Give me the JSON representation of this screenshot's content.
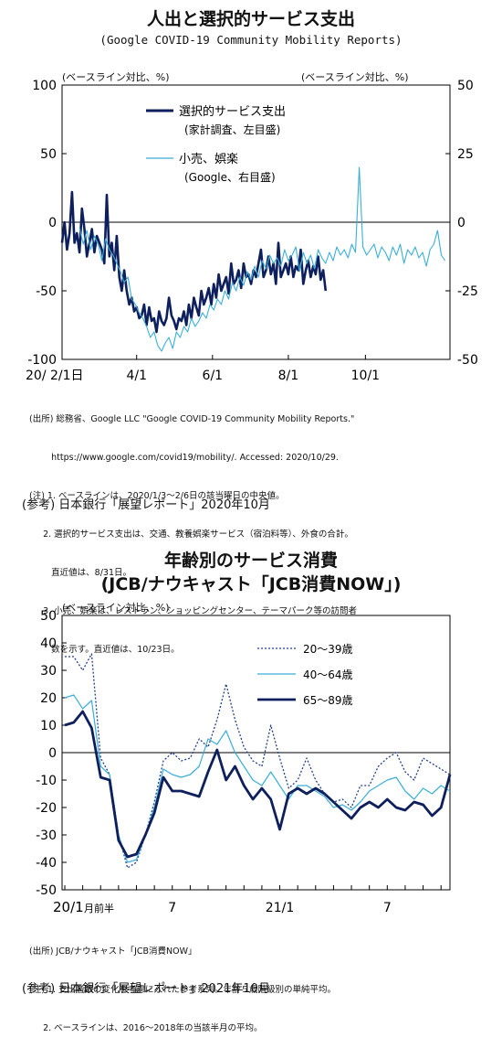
{
  "chart_data": [
    {
      "type": "line",
      "title": "人出と選択的サービス支出",
      "subtitle": "(Google COVID-19 Community Mobility Reports)",
      "y_left_unit": "(ベースライン対比、%)",
      "y_right_unit": "(ベースライン対比、%)",
      "ylim_left": [
        -100,
        100
      ],
      "ylim_right": [
        -50,
        50
      ],
      "yticks_left": [
        "100",
        "50",
        "0",
        "-50",
        "-100"
      ],
      "yticks_right": [
        "50",
        "25",
        "0",
        "-25",
        "-50"
      ],
      "xticks": [
        "20/ 2/1日",
        "4/1",
        "6/1",
        "8/1",
        "10/1"
      ],
      "grid": false,
      "legend_position": "top-left",
      "series": [
        {
          "name": "選択的サービス支出",
          "sub": "(家計調査、左目盛)",
          "axis": "left",
          "color": "#0d1f5c",
          "x_day": [
            0,
            2,
            4,
            6,
            8,
            10,
            12,
            14,
            16,
            18,
            20,
            22,
            24,
            26,
            28,
            30,
            32,
            34,
            36,
            38,
            40,
            42,
            44,
            46,
            48,
            50,
            52,
            54,
            56,
            58,
            60,
            62,
            64,
            66,
            68,
            70,
            72,
            74,
            76,
            78,
            80,
            82,
            84,
            86,
            88,
            90,
            92,
            94,
            96,
            98,
            100,
            102,
            104,
            106,
            108,
            110,
            112,
            114,
            116,
            118,
            120,
            122,
            124,
            126,
            128,
            130,
            132,
            134,
            136,
            138,
            140,
            142,
            144,
            146,
            148,
            150,
            152,
            154,
            156,
            158,
            160,
            162,
            164,
            166,
            168,
            170,
            172,
            174,
            176,
            178,
            180,
            182,
            184,
            186,
            188,
            190,
            192,
            194,
            196,
            198,
            200,
            202,
            204,
            206,
            208,
            210,
            212
          ],
          "y": [
            -15,
            0,
            -20,
            -8,
            22,
            -15,
            -8,
            -22,
            10,
            -5,
            -25,
            -15,
            -5,
            -22,
            -10,
            -15,
            -20,
            -30,
            20,
            -25,
            -15,
            -35,
            -10,
            -40,
            -50,
            -35,
            -50,
            -60,
            -55,
            -65,
            -62,
            -70,
            -68,
            -60,
            -75,
            -62,
            -72,
            -70,
            -80,
            -65,
            -72,
            -75,
            -70,
            -55,
            -68,
            -72,
            -78,
            -70,
            -72,
            -65,
            -75,
            -60,
            -70,
            -55,
            -62,
            -68,
            -50,
            -60,
            -55,
            -48,
            -60,
            -45,
            -55,
            -38,
            -50,
            -45,
            -40,
            -52,
            -30,
            -45,
            -42,
            -35,
            -48,
            -30,
            -40,
            -38,
            -45,
            -35,
            -40,
            -30,
            -20,
            -40,
            -35,
            -25,
            -38,
            -30,
            -45,
            -15,
            -40,
            -35,
            -30,
            -38,
            -25,
            -40,
            -32,
            -35,
            -20,
            -45,
            -35,
            -28,
            -40,
            -32,
            -38,
            -25,
            -42,
            -35,
            -50
          ]
        },
        {
          "name": "小売、娯楽",
          "sub": "(Google、右目盛)",
          "axis": "right",
          "color": "#3aaed8",
          "x_day": [
            14,
            17,
            20,
            23,
            26,
            29,
            32,
            35,
            38,
            41,
            44,
            47,
            50,
            53,
            56,
            59,
            62,
            65,
            68,
            71,
            74,
            77,
            80,
            83,
            86,
            89,
            92,
            95,
            98,
            101,
            104,
            107,
            110,
            113,
            116,
            119,
            122,
            125,
            128,
            131,
            134,
            137,
            140,
            143,
            146,
            149,
            152,
            155,
            158,
            161,
            164,
            167,
            170,
            173,
            176,
            179,
            182,
            185,
            188,
            191,
            194,
            197,
            200,
            203,
            206,
            209,
            212,
            215,
            218,
            221,
            224,
            227,
            230,
            233,
            236,
            239,
            242,
            245,
            248,
            251,
            254,
            257,
            260,
            263,
            266,
            269,
            272,
            275,
            278,
            281,
            284,
            287,
            290,
            293,
            296,
            299,
            302,
            305,
            308
          ],
          "y": [
            -2,
            -8,
            -3,
            -10,
            -5,
            -8,
            -14,
            -6,
            -10,
            -12,
            -15,
            -18,
            -22,
            -20,
            -28,
            -30,
            -33,
            -35,
            -38,
            -42,
            -40,
            -45,
            -47,
            -44,
            -42,
            -46,
            -40,
            -42,
            -38,
            -40,
            -35,
            -38,
            -36,
            -33,
            -35,
            -30,
            -32,
            -28,
            -30,
            -25,
            -28,
            -22,
            -25,
            -20,
            -23,
            -18,
            -21,
            -16,
            -20,
            -14,
            -17,
            -12,
            -15,
            -13,
            -16,
            -10,
            -14,
            -12,
            -9,
            -18,
            -11,
            -15,
            -12,
            -17,
            -10,
            -13,
            -15,
            -11,
            -14,
            -9,
            -12,
            -10,
            -13,
            -8,
            -11,
            20,
            -9,
            -12,
            -10,
            -8,
            -13,
            -9,
            -11,
            -14,
            -9,
            -12,
            -8,
            -15,
            -10,
            -12,
            -9,
            -13,
            -11,
            -16,
            -10,
            -8,
            -3,
            -12,
            -14
          ]
        }
      ]
    },
    {
      "type": "line",
      "title": "年齢別のサービス消費",
      "subtitle": "(JCB/ナウキャスト「JCB消費NOW」)",
      "y_left_unit": "(ベースライン対比、%)",
      "ylim": [
        -50,
        50
      ],
      "yticks": [
        "50",
        "40",
        "30",
        "20",
        "10",
        "0",
        "-10",
        "-20",
        "-30",
        "-40",
        "-50"
      ],
      "xticks": [
        "20/1",
        "月前半",
        "7",
        "21/1",
        "7"
      ],
      "grid": false,
      "legend_position": "top-right",
      "x": [
        0,
        1,
        2,
        3,
        4,
        5,
        6,
        7,
        8,
        9,
        10,
        11,
        12,
        13,
        14,
        15,
        16,
        17,
        18,
        19,
        20,
        21,
        22,
        23,
        24,
        25,
        26,
        27,
        28,
        29,
        30,
        31,
        32,
        33,
        34,
        35,
        36,
        37,
        38,
        39,
        40,
        41,
        42,
        43
      ],
      "series": [
        {
          "name": "20～39歳",
          "style": "dotted",
          "color": "#1f3f8c",
          "values": [
            35,
            35,
            30,
            36,
            -2,
            -8,
            -30,
            -42,
            -40,
            -30,
            -18,
            -3,
            0,
            -3,
            -2,
            5,
            2,
            12,
            25,
            12,
            2,
            -3,
            -5,
            10,
            -2,
            -13,
            -10,
            -2,
            -10,
            -15,
            -18,
            -17,
            -20,
            -12,
            -12,
            -5,
            -2,
            0,
            -7,
            -10,
            -2,
            -4,
            -6,
            -8
          ]
        },
        {
          "name": "40～64歳",
          "style": "solid",
          "color": "#3aaed8",
          "values": [
            20,
            21,
            16,
            19,
            -5,
            -8,
            -30,
            -40,
            -39,
            -30,
            -20,
            -6,
            -8,
            -9,
            -8,
            -5,
            5,
            3,
            8,
            0,
            -5,
            -10,
            -12,
            -7,
            -12,
            -17,
            -12,
            -12,
            -14,
            -16,
            -20,
            -19,
            -21,
            -18,
            -14,
            -12,
            -10,
            -9,
            -14,
            -17,
            -13,
            -15,
            -12,
            -14
          ]
        },
        {
          "name": "65～89歳",
          "style": "bold",
          "color": "#0d1f5c",
          "values": [
            10,
            11,
            15,
            9,
            -9,
            -10,
            -32,
            -38,
            -37,
            -30,
            -22,
            -9,
            -14,
            -14,
            -15,
            -16,
            -7,
            1,
            -10,
            -5,
            -12,
            -17,
            -13,
            -17,
            -28,
            -15,
            -13,
            -15,
            -13,
            -15,
            -18,
            -21,
            -24,
            -20,
            -18,
            -20,
            -17,
            -20,
            -21,
            -18,
            -19,
            -23,
            -20,
            -8
          ]
        }
      ]
    }
  ],
  "notes1": [
    "(出所) 総務省、Google LLC \"Google COVID-19 Community Mobility Reports.\"",
    "        https://www.google.com/covid19/mobility/. Accessed: 2020/10/29.",
    "(注) 1. ベースラインは、2020/1/3～2/6日の該当曜日の中央値。",
    "     2. 選択的サービス支出は、交通、教養娯楽サービス（宿泊料等）、外食の合計。",
    "        直近値は、8/31日。",
    "     3. 小売、娯楽は、レストラン、ショッピングセンター、テーマパーク等の訪問者",
    "        数を示す。直近値は、10/23日。"
  ],
  "ref1": "(参考) 日本銀行「展望レポート」2020年10月",
  "notes2": [
    "(出所) JCB/ナウキャスト「JCB消費NOW」",
    "(注) 1. 支出者数の変化を考慮に入れた参考系列。年齢５歳階級別の単純平均。",
    "     2. ベースラインは、2016～2018年の当該半月の平均。"
  ],
  "ref2": "(参考) 日本銀行「展望レポート」2021年10月"
}
